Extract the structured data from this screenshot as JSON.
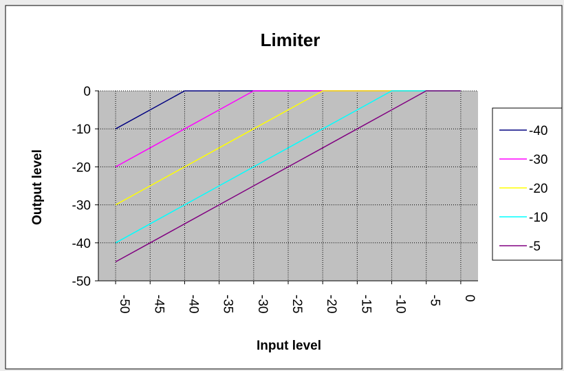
{
  "chart_data": {
    "type": "line",
    "title": "Limiter",
    "xlabel": "Input level",
    "ylabel": "Output level",
    "x": [
      -50,
      -45,
      -40,
      -35,
      -30,
      -25,
      -20,
      -15,
      -10,
      -5,
      0
    ],
    "x_tick_labels": [
      "-50",
      "-45",
      "-40",
      "-35",
      "-30",
      "-25",
      "-20",
      "-15",
      "-10",
      "-5",
      "0"
    ],
    "y_tick_labels": [
      "0",
      "-10",
      "-20",
      "-30",
      "-40",
      "-50"
    ],
    "xlim": [
      -52.5,
      2.5
    ],
    "ylim": [
      -50,
      0
    ],
    "grid": true,
    "legend_position": "right",
    "series": [
      {
        "name": "-40",
        "color": "#000080",
        "values": [
          -10,
          -5,
          0,
          0,
          0,
          0,
          0,
          0,
          0,
          0,
          0
        ]
      },
      {
        "name": "-30",
        "color": "#ff00ff",
        "values": [
          -20,
          -15,
          -10,
          -5,
          0,
          0,
          0,
          0,
          0,
          0,
          0
        ]
      },
      {
        "name": "-20",
        "color": "#ffff00",
        "values": [
          -30,
          -25,
          -20,
          -15,
          -10,
          -5,
          0,
          0,
          0,
          0,
          0
        ]
      },
      {
        "name": "-10",
        "color": "#00ffff",
        "values": [
          -40,
          -35,
          -30,
          -25,
          -20,
          -15,
          -10,
          -5,
          0,
          0,
          0
        ]
      },
      {
        "name": "-5",
        "color": "#800080",
        "values": [
          -45,
          -40,
          -35,
          -30,
          -25,
          -20,
          -15,
          -10,
          -5,
          0,
          0
        ]
      }
    ]
  }
}
